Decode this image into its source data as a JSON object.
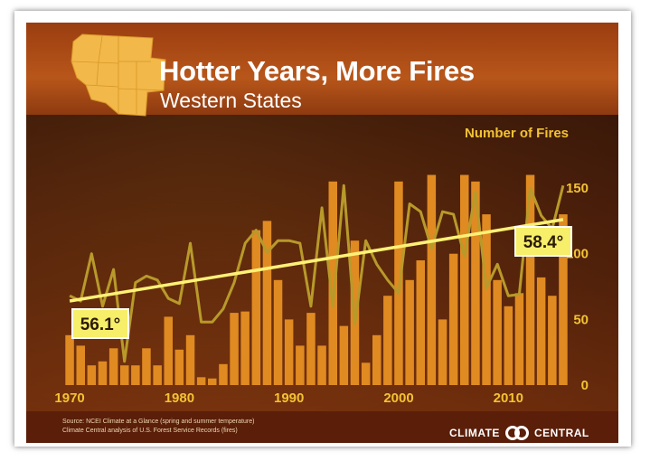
{
  "header": {
    "title": "Hotter Years, More Fires",
    "subtitle": "Western States"
  },
  "footer": {
    "source_line1": "Source: NCEI Climate at a Glance (spring and summer temperature)",
    "source_line2": "Climate Central analysis of U.S. Forest Service Records (fires)",
    "logo_left": "CLIMATE",
    "logo_right": "CENTRAL"
  },
  "colors": {
    "bars": "#e08a22",
    "temperature_line": "#b89a2a",
    "trend_line": "#fff176",
    "axis_text": "#f2c234",
    "label_box": "#f7ee6a"
  },
  "chart_data": {
    "type": "bar",
    "title": "Hotter Years, More Fires",
    "subtitle": "Western States",
    "x": [
      1970,
      1971,
      1972,
      1973,
      1974,
      1975,
      1976,
      1977,
      1978,
      1979,
      1980,
      1981,
      1982,
      1983,
      1984,
      1985,
      1986,
      1987,
      1988,
      1989,
      1990,
      1991,
      1992,
      1993,
      1994,
      1995,
      1996,
      1997,
      1998,
      1999,
      2000,
      2001,
      2002,
      2003,
      2004,
      2005,
      2006,
      2007,
      2008,
      2009,
      2010,
      2011,
      2012,
      2013,
      2014,
      2015
    ],
    "xticks": [
      1970,
      1980,
      1990,
      2000,
      2010
    ],
    "xlim": [
      1969.5,
      2015.5
    ],
    "series": [
      {
        "name": "Number of Fires",
        "type": "bar",
        "axis": "right",
        "values": [
          38,
          30,
          15,
          18,
          28,
          15,
          15,
          28,
          15,
          52,
          27,
          38,
          6,
          5,
          16,
          55,
          56,
          118,
          125,
          80,
          50,
          30,
          55,
          30,
          155,
          45,
          110,
          17,
          38,
          68,
          155,
          80,
          95,
          160,
          50,
          100,
          160,
          155,
          130,
          80,
          60,
          70,
          160,
          82,
          68,
          130
        ]
      },
      {
        "type": "line",
        "values": [
          68,
          64,
          100,
          60,
          88,
          18,
          78,
          83,
          80,
          66,
          62,
          108,
          48,
          48,
          58,
          78,
          108,
          118,
          101,
          110,
          110,
          108,
          60,
          135,
          60,
          152,
          46,
          110,
          92,
          80,
          70,
          138,
          132,
          104,
          132,
          130,
          98,
          147,
          74,
          92,
          68,
          69,
          150,
          129,
          119,
          152
        ]
      }
    ],
    "trend": {
      "start_year": 1970,
      "start_temp": "56.1°",
      "end_year": 2015,
      "end_temp": "58.4°"
    },
    "y2_label": "Number of Fires",
    "y2_ticks": [
      0,
      50,
      100,
      150
    ],
    "ylim": [
      0,
      170
    ]
  }
}
